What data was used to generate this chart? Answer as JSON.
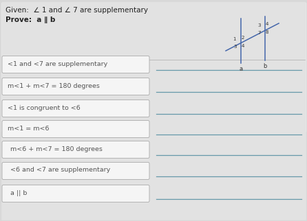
{
  "given_line1": "Given:  ∠ 1 and ∠ 7 are supplementary",
  "given_line2": "Prove:  a ∥ b",
  "statements": [
    "<1 and <7 are supplementary",
    "m<1 + m<7 = 180 degrees",
    "<1 is congruent to <6",
    "m<1 = m<6",
    "m<6 + m<7 = 180 degrees",
    "<6 and <7 are supplementary",
    "a || b"
  ],
  "bg_color": "#c8c8c8",
  "panel_color": "#e8e8e8",
  "box_face": "#f5f5f5",
  "box_edge": "#aaaaaa",
  "line_color": "#6699aa",
  "text_color": "#555555",
  "header_color": "#222222",
  "diagram_line_color": "#4466aa",
  "diagram_trans_color": "#4466aa"
}
